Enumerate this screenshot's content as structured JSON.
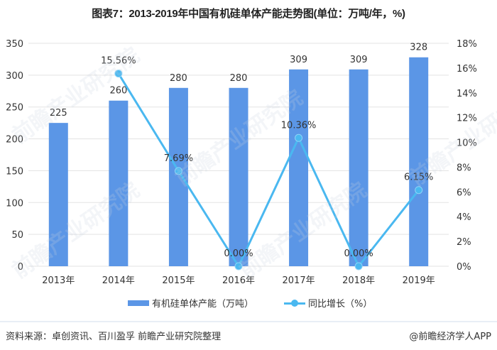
{
  "title": "图表7：2013-2019年中国有机硅单体产能走势图(单位：万吨/年，%)",
  "legend": {
    "bar_label": "有机硅单体产能（万吨）",
    "line_label": "同比增长（%）"
  },
  "footer": {
    "source": "资料来源：卓创资讯、百川盈孚 前瞻产业研究院整理",
    "brand": "@前瞻经济学人APP"
  },
  "watermark": "前瞻产业研究院",
  "colors": {
    "bar": "#5b96e6",
    "line": "#4ab8f0",
    "grid": "#e3e3e3"
  },
  "chart_data": {
    "type": "bar+line",
    "title": "图表7：2013-2019年中国有机硅单体产能走势图(单位：万吨/年，%)",
    "categories": [
      "2013年",
      "2014年",
      "2015年",
      "2016年",
      "2017年",
      "2018年",
      "2019年"
    ],
    "series": [
      {
        "name": "有机硅单体产能（万吨）",
        "type": "bar",
        "axis": "left",
        "values": [
          225,
          260,
          280,
          280,
          309,
          309,
          328
        ],
        "labels": [
          "225",
          "260",
          "280",
          "280",
          "309",
          "309",
          "328"
        ]
      },
      {
        "name": "同比增长（%）",
        "type": "line",
        "axis": "right",
        "values": [
          null,
          15.56,
          7.69,
          0.0,
          10.36,
          0.0,
          6.15
        ],
        "labels": [
          "",
          "15.56%",
          "7.69%",
          "0.00%",
          "10.36%",
          "0.00%",
          "6.15%"
        ]
      }
    ],
    "left_axis": {
      "ylim": [
        0,
        350
      ],
      "ticks": [
        "0",
        "50",
        "100",
        "150",
        "200",
        "250",
        "300",
        "350"
      ]
    },
    "right_axis": {
      "ylim": [
        0,
        18
      ],
      "ticks": [
        "0%",
        "2%",
        "4%",
        "6%",
        "8%",
        "10%",
        "12%",
        "14%",
        "16%",
        "18%"
      ]
    },
    "xlabel": "",
    "ylabel": "",
    "grid": true,
    "legend_position": "bottom"
  }
}
